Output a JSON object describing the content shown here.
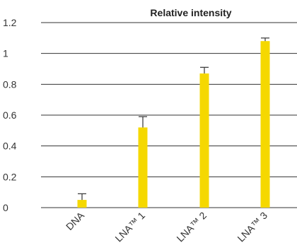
{
  "chart_data": {
    "type": "bar",
    "title": "Relative intensity",
    "xlabel": "",
    "ylabel": "",
    "categories": [
      "DNA",
      "LNA™ 1",
      "LNA™ 2",
      "LNA™ 3"
    ],
    "values": [
      0.05,
      0.52,
      0.87,
      1.08
    ],
    "error_upper": [
      0.09,
      0.59,
      0.91,
      1.1
    ],
    "ylim": [
      0,
      1.2
    ],
    "yticks": [
      0,
      0.2,
      0.4,
      0.6,
      0.8,
      1,
      1.2
    ],
    "ytick_labels": [
      "0",
      "0.2",
      "0.4",
      "0.6",
      "0.8",
      "1",
      "1.2"
    ],
    "grid": "horizontal",
    "legend": "none",
    "bar_color": "#f5d800",
    "grid_color": "#333333"
  }
}
